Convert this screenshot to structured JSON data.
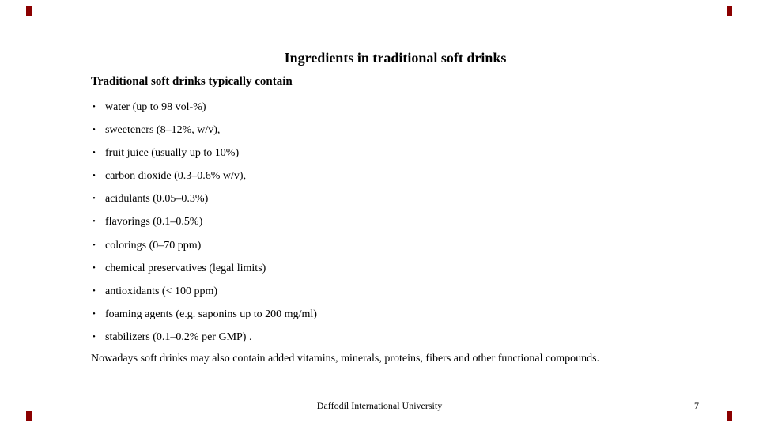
{
  "slide": {
    "title": "Ingredients in traditional soft drinks",
    "subtitle": "Traditional soft drinks typically contain",
    "bullets": [
      "water (up to 98 vol-%)",
      "sweeteners (8–12%, w/v),",
      "fruit juice (usually up to 10%)",
      "carbon dioxide (0.3–0.6% w/v),",
      "acidulants (0.05–0.3%)",
      "flavorings (0.1–0.5%)",
      "colorings (0–70 ppm)",
      "chemical preservatives (legal limits)",
      "antioxidants (< 100 ppm)",
      "foaming agents (e.g. saponins up to 200 mg/ml)",
      "stabilizers (0.1–0.2% per GMP) ."
    ],
    "closing": "Nowadays soft drinks may also contain added vitamins, minerals, proteins, fibers and other functional compounds.",
    "footer": {
      "institution": "Daffodil International University",
      "page_number": "7"
    },
    "colors": {
      "corner_mark": "#8B0000",
      "text": "#000000",
      "background": "#FFFFFF"
    }
  }
}
